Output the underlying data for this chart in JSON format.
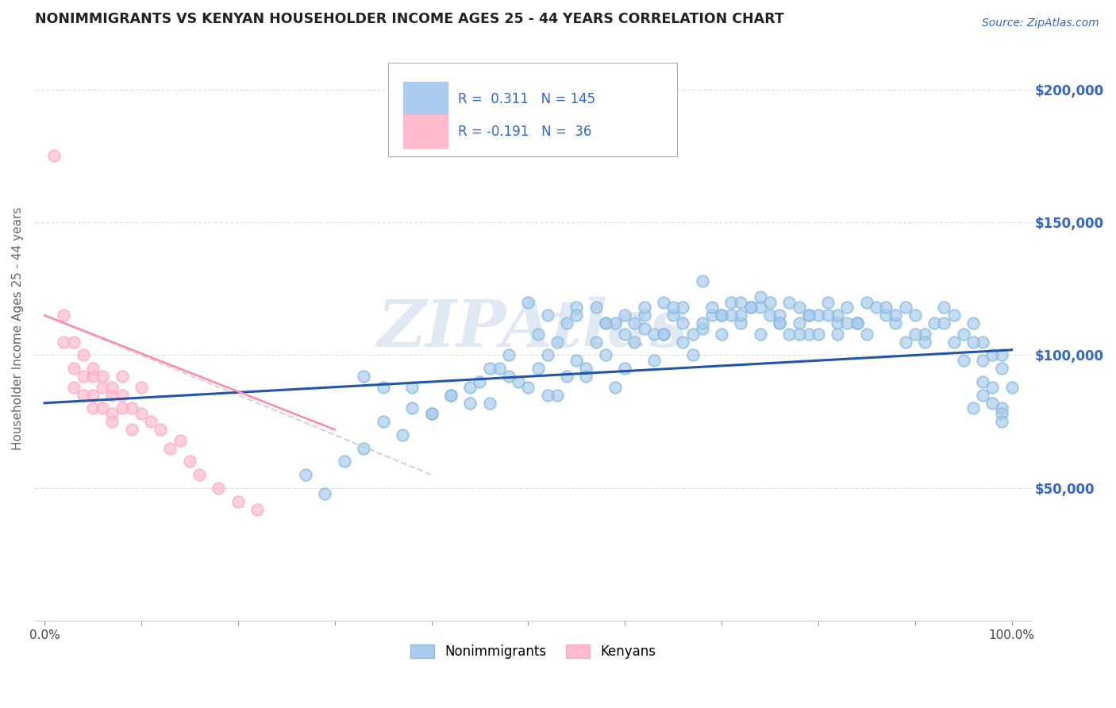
{
  "title": "NONIMMIGRANTS VS KENYAN HOUSEHOLDER INCOME AGES 25 - 44 YEARS CORRELATION CHART",
  "source_text": "Source: ZipAtlas.com",
  "ylabel": "Householder Income Ages 25 - 44 years",
  "xlim": [
    -0.01,
    1.02
  ],
  "ylim": [
    0,
    220000
  ],
  "xticks": [
    0.0,
    0.1,
    0.2,
    0.3,
    0.4,
    0.5,
    0.6,
    0.7,
    0.8,
    0.9,
    1.0
  ],
  "xticklabels": [
    "0.0%",
    "",
    "",
    "",
    "",
    "",
    "",
    "",
    "",
    "",
    "100.0%"
  ],
  "ytick_positions": [
    50000,
    100000,
    150000,
    200000
  ],
  "ytick_labels": [
    "$50,000",
    "$100,000",
    "$150,000",
    "$200,000"
  ],
  "blue_marker_color": "#aaccee",
  "blue_edge_color": "#88bbdd",
  "pink_marker_color": "#ffbbcc",
  "pink_edge_color": "#ffaacc",
  "blue_line_color": "#2255aa",
  "pink_line_color": "#ff88aa",
  "pink_dash_color": "#ddcccc",
  "legend_R1": "0.311",
  "legend_N1": "145",
  "legend_R2": "-0.191",
  "legend_N2": "36",
  "watermark": "ZIPAtlas",
  "watermark_color": "#c8d8ea",
  "title_color": "#222222",
  "axis_label_color": "#3366cc",
  "ylabel_color": "#666666",
  "nonimmigrants_x": [
    0.27,
    0.29,
    0.31,
    0.33,
    0.35,
    0.37,
    0.38,
    0.4,
    0.42,
    0.44,
    0.45,
    0.46,
    0.48,
    0.5,
    0.51,
    0.52,
    0.53,
    0.54,
    0.55,
    0.56,
    0.57,
    0.58,
    0.59,
    0.6,
    0.61,
    0.62,
    0.63,
    0.64,
    0.65,
    0.66,
    0.67,
    0.68,
    0.69,
    0.7,
    0.71,
    0.72,
    0.73,
    0.74,
    0.75,
    0.76,
    0.77,
    0.78,
    0.79,
    0.8,
    0.81,
    0.82,
    0.83,
    0.84,
    0.85,
    0.86,
    0.87,
    0.88,
    0.89,
    0.9,
    0.91,
    0.92,
    0.93,
    0.94,
    0.95,
    0.96,
    0.97,
    0.98,
    0.99,
    1.0,
    0.5,
    0.52,
    0.55,
    0.58,
    0.6,
    0.62,
    0.64,
    0.66,
    0.68,
    0.7,
    0.72,
    0.74,
    0.76,
    0.78,
    0.8,
    0.82,
    0.48,
    0.51,
    0.54,
    0.57,
    0.6,
    0.63,
    0.66,
    0.69,
    0.72,
    0.75,
    0.78,
    0.81,
    0.84,
    0.87,
    0.9,
    0.93,
    0.96,
    0.99,
    0.47,
    0.53,
    0.59,
    0.65,
    0.71,
    0.77,
    0.83,
    0.89,
    0.95,
    0.55,
    0.61,
    0.67,
    0.73,
    0.79,
    0.85,
    0.91,
    0.97,
    0.58,
    0.64,
    0.7,
    0.76,
    0.82,
    0.88,
    0.94,
    0.99,
    0.99,
    0.99,
    0.98,
    0.98,
    0.97,
    0.97,
    0.96,
    0.35,
    0.4,
    0.44,
    0.42,
    0.38,
    0.33,
    0.46,
    0.49,
    0.52,
    0.56,
    0.62,
    0.68,
    0.74,
    0.79,
    0.84
  ],
  "nonimmigrants_y": [
    55000,
    48000,
    60000,
    65000,
    75000,
    70000,
    80000,
    78000,
    85000,
    88000,
    90000,
    82000,
    92000,
    88000,
    95000,
    100000,
    85000,
    92000,
    98000,
    95000,
    105000,
    100000,
    88000,
    95000,
    105000,
    110000,
    98000,
    108000,
    115000,
    105000,
    100000,
    110000,
    115000,
    108000,
    120000,
    112000,
    118000,
    108000,
    115000,
    112000,
    120000,
    118000,
    108000,
    115000,
    120000,
    112000,
    118000,
    112000,
    120000,
    118000,
    115000,
    112000,
    118000,
    115000,
    108000,
    112000,
    118000,
    115000,
    108000,
    112000,
    105000,
    100000,
    95000,
    88000,
    120000,
    115000,
    118000,
    112000,
    108000,
    115000,
    120000,
    118000,
    112000,
    115000,
    120000,
    118000,
    115000,
    112000,
    108000,
    115000,
    100000,
    108000,
    112000,
    118000,
    115000,
    108000,
    112000,
    118000,
    115000,
    120000,
    108000,
    115000,
    112000,
    118000,
    108000,
    112000,
    105000,
    100000,
    95000,
    105000,
    112000,
    118000,
    115000,
    108000,
    112000,
    105000,
    98000,
    115000,
    112000,
    108000,
    118000,
    115000,
    108000,
    105000,
    98000,
    112000,
    108000,
    115000,
    112000,
    108000,
    115000,
    105000,
    80000,
    78000,
    75000,
    82000,
    88000,
    90000,
    85000,
    80000,
    88000,
    78000,
    82000,
    85000,
    88000,
    92000,
    95000,
    90000,
    85000,
    92000,
    118000,
    128000,
    122000,
    115000,
    112000
  ],
  "kenyans_x": [
    0.01,
    0.02,
    0.02,
    0.03,
    0.03,
    0.03,
    0.04,
    0.04,
    0.04,
    0.05,
    0.05,
    0.05,
    0.05,
    0.06,
    0.06,
    0.06,
    0.07,
    0.07,
    0.07,
    0.07,
    0.08,
    0.08,
    0.08,
    0.09,
    0.09,
    0.1,
    0.1,
    0.11,
    0.12,
    0.13,
    0.14,
    0.15,
    0.16,
    0.18,
    0.2,
    0.22
  ],
  "kenyans_y": [
    175000,
    115000,
    105000,
    95000,
    88000,
    105000,
    92000,
    85000,
    100000,
    92000,
    85000,
    80000,
    95000,
    88000,
    80000,
    92000,
    85000,
    78000,
    88000,
    75000,
    80000,
    92000,
    85000,
    80000,
    72000,
    78000,
    88000,
    75000,
    72000,
    65000,
    68000,
    60000,
    55000,
    50000,
    45000,
    42000
  ],
  "blue_trendline_x": [
    0.0,
    1.0
  ],
  "blue_trendline_y": [
    82000,
    102000
  ],
  "pink_trendline_x": [
    0.0,
    0.3
  ],
  "pink_trendline_y": [
    115000,
    72000
  ]
}
